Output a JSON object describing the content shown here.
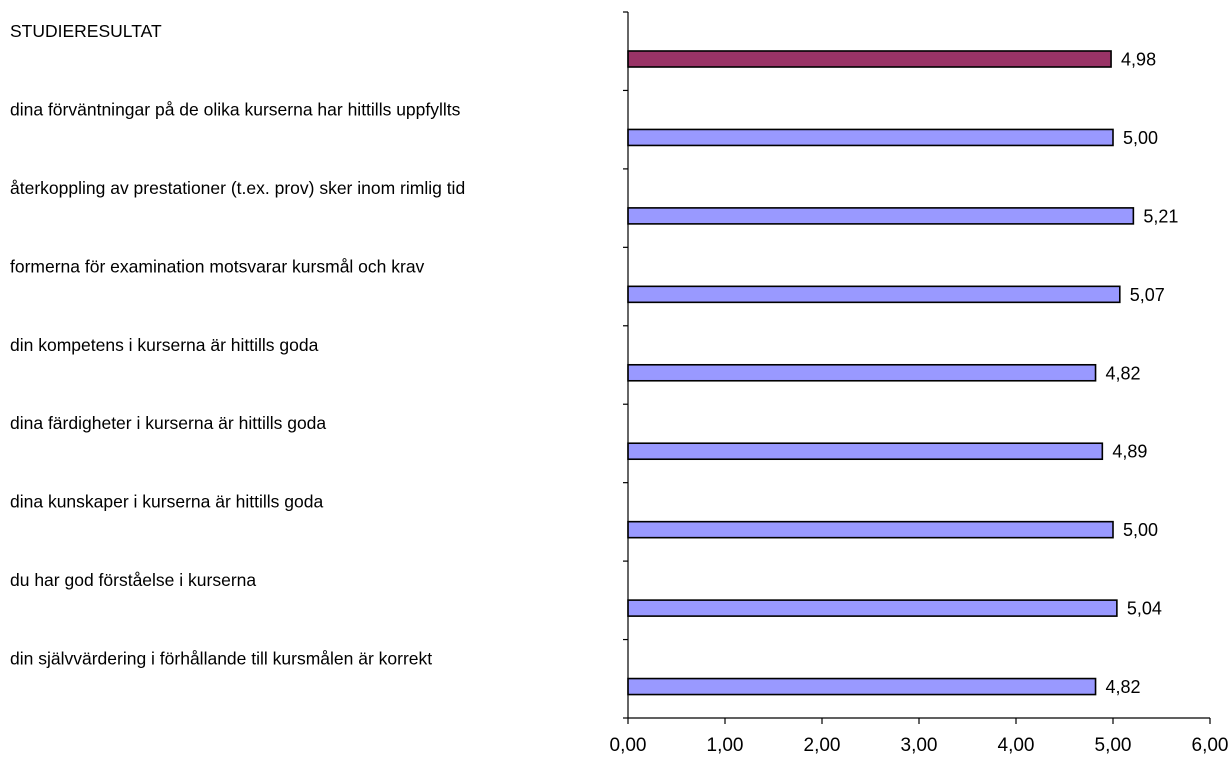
{
  "chart_data": {
    "type": "bar",
    "orientation": "horizontal",
    "categories": [
      "STUDIERESULTAT",
      "dina förväntningar på de olika kurserna har hittills uppfyllts",
      "återkoppling av prestationer (t.ex. prov) sker inom rimlig tid",
      "formerna för examination motsvarar kursmål och krav",
      "din kompetens i kurserna är hittills goda",
      "dina färdigheter i kurserna är hittills goda",
      "dina kunskaper i kurserna är hittills goda",
      "du har god förståelse i kurserna",
      "din självvärdering i förhållande till kursmålen är korrekt"
    ],
    "values": [
      4.98,
      5.0,
      5.21,
      5.07,
      4.82,
      4.89,
      5.0,
      5.04,
      4.82
    ],
    "data_labels": [
      "4,98",
      "5,00",
      "5,21",
      "5,07",
      "4,82",
      "4,89",
      "5,00",
      "5,04",
      "4,82"
    ],
    "highlight_index": 0,
    "xlim": [
      0,
      6
    ],
    "x_ticks": [
      0,
      1,
      2,
      3,
      4,
      5,
      6
    ],
    "x_tick_labels": [
      "0,00",
      "1,00",
      "2,00",
      "3,00",
      "4,00",
      "5,00",
      "6,00"
    ],
    "colors": {
      "bar": "#9999ff",
      "highlight": "#993366",
      "outline": "#000000"
    },
    "title": "",
    "xlabel": "",
    "ylabel": "",
    "grid": false,
    "legend": "none"
  }
}
